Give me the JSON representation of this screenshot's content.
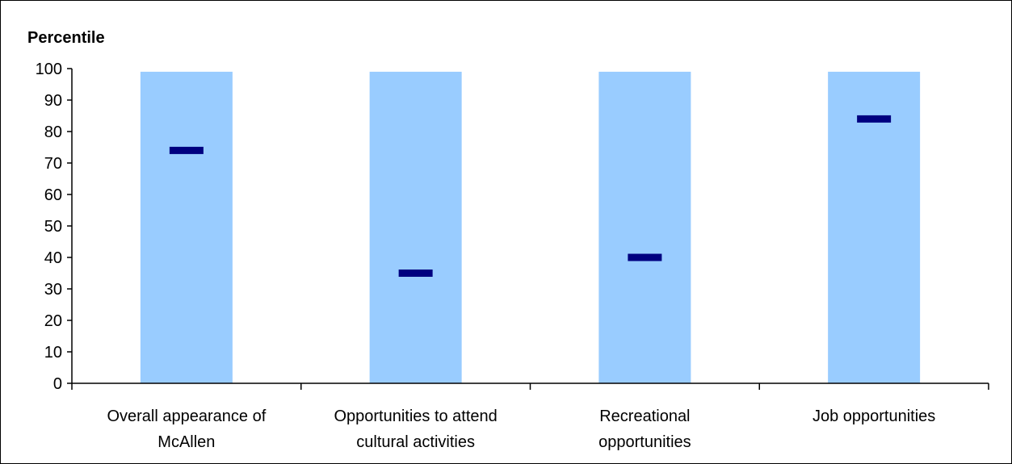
{
  "chart_data": {
    "type": "bar",
    "ylabel": "Percentile",
    "ylim": [
      0,
      100
    ],
    "yticks": [
      0,
      10,
      20,
      30,
      40,
      50,
      60,
      70,
      80,
      90,
      100
    ],
    "categories": [
      [
        "Overall appearance of",
        "McAllen"
      ],
      [
        "Opportunities to attend",
        "cultural activities"
      ],
      [
        "Recreational",
        "opportunities"
      ],
      [
        "Job opportunities"
      ]
    ],
    "range_low": [
      0,
      0,
      0,
      0
    ],
    "range_high": [
      99,
      99,
      99,
      99
    ],
    "values": [
      74,
      35,
      40,
      84
    ],
    "grid": false,
    "legend": "none",
    "colors": {
      "range_bar": "#99ccff",
      "marker": "#000080",
      "axis": "#000000"
    }
  }
}
